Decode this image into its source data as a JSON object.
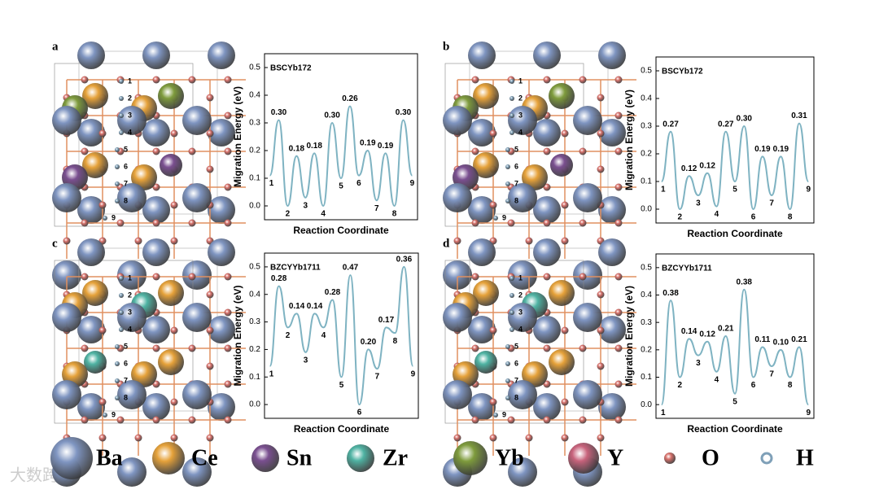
{
  "chart_data": [
    {
      "type": "line",
      "panel": "a",
      "title": "BSCYb172",
      "x_label": "Reaction Coordinate",
      "y_label": "Migration Energy (eV)",
      "color": "#7fb3c2",
      "xlim": [
        -0.6,
        16.6
      ],
      "ylim": [
        -0.05,
        0.55
      ],
      "yticks": [
        {
          "value": 0,
          "label": "0.0"
        },
        0.1,
        0.2,
        0.3,
        0.4,
        0.5
      ],
      "x": [
        0,
        1,
        2,
        3,
        4,
        5,
        6,
        7,
        8,
        9,
        10,
        11,
        12,
        13,
        14,
        15,
        16
      ],
      "values": [
        0.11,
        0.31,
        0.0,
        0.18,
        0.03,
        0.19,
        0.0,
        0.3,
        0.1,
        0.36,
        0.11,
        0.2,
        0.02,
        0.19,
        0.0,
        0.31,
        0.11
      ],
      "point_labels": [
        "1",
        "0.30",
        "2",
        "0.18",
        "3",
        "0.18",
        "4",
        "0.30",
        "5",
        "0.26",
        "6",
        "0.19",
        "7",
        "0.19",
        "8",
        "0.30",
        "9"
      ],
      "structure_labels": [
        "1",
        "2",
        "3",
        "4",
        "5",
        "6",
        "7",
        "8",
        "9"
      ]
    },
    {
      "type": "line",
      "panel": "b",
      "title": "BSCYb172",
      "x_label": "Reaction Coordinate",
      "y_label": "Migration Energy (eV)",
      "color": "#7fb3c2",
      "xlim": [
        -0.6,
        16.6
      ],
      "ylim": [
        -0.05,
        0.55
      ],
      "yticks": [
        {
          "value": 0,
          "label": "0.0"
        },
        0.1,
        0.2,
        0.3,
        0.4,
        0.5
      ],
      "x": [
        0,
        1,
        2,
        3,
        4,
        5,
        6,
        7,
        8,
        9,
        10,
        11,
        12,
        13,
        14,
        15,
        16
      ],
      "values": [
        0.1,
        0.28,
        0.0,
        0.12,
        0.05,
        0.13,
        0.01,
        0.28,
        0.1,
        0.3,
        0.0,
        0.19,
        0.05,
        0.19,
        0.0,
        0.31,
        0.1
      ],
      "point_labels": [
        "1",
        "0.27",
        "2",
        "0.12",
        "3",
        "0.12",
        "4",
        "0.27",
        "5",
        "0.30",
        "6",
        "0.19",
        "7",
        "0.19",
        "8",
        "0.31",
        "9"
      ],
      "structure_labels": [
        "1",
        "2",
        "3",
        "4",
        "5",
        "6",
        "7",
        "8",
        "9"
      ]
    },
    {
      "type": "line",
      "panel": "c",
      "title": "BZCYYb1711",
      "x_label": "Reaction Coordinate",
      "y_label": "Migration Energy (eV)",
      "color": "#7fb3c2",
      "xlim": [
        -0.6,
        16.6
      ],
      "ylim": [
        -0.05,
        0.55
      ],
      "yticks": [
        {
          "value": 0,
          "label": "0.0"
        },
        0.1,
        0.2,
        0.3,
        0.4,
        0.5
      ],
      "x": [
        0,
        1,
        2,
        3,
        4,
        5,
        6,
        7,
        8,
        9,
        10,
        11,
        12,
        13,
        14,
        15,
        16
      ],
      "values": [
        0.14,
        0.43,
        0.28,
        0.33,
        0.19,
        0.33,
        0.28,
        0.38,
        0.1,
        0.47,
        0.0,
        0.2,
        0.13,
        0.28,
        0.26,
        0.5,
        0.14
      ],
      "point_labels": [
        "1",
        "0.28",
        "2",
        "0.14",
        "3",
        "0.14",
        "4",
        "0.28",
        "5",
        "0.47",
        "6",
        "0.20",
        "7",
        "0.17",
        "8",
        "0.36",
        "9"
      ],
      "structure_labels": [
        "1",
        "2",
        "3",
        "4",
        "5",
        "6",
        "7",
        "8",
        "9"
      ]
    },
    {
      "type": "line",
      "panel": "d",
      "title": "BZCYYb1711",
      "x_label": "Reaction Coordinate",
      "y_label": "Migration Energy (eV)",
      "color": "#7fb3c2",
      "xlim": [
        -0.6,
        16.6
      ],
      "ylim": [
        -0.05,
        0.55
      ],
      "yticks": [
        {
          "value": 0,
          "label": "0.0"
        },
        0.1,
        0.2,
        0.3,
        0.4,
        0.5
      ],
      "x": [
        0,
        1,
        2,
        3,
        4,
        5,
        6,
        7,
        8,
        9,
        10,
        11,
        12,
        13,
        14,
        15,
        16
      ],
      "values": [
        0.0,
        0.38,
        0.1,
        0.24,
        0.18,
        0.23,
        0.12,
        0.25,
        0.04,
        0.42,
        0.1,
        0.21,
        0.14,
        0.2,
        0.1,
        0.21,
        0.0
      ],
      "point_labels": [
        "1",
        "0.38",
        "2",
        "0.14",
        "3",
        "0.12",
        "4",
        "0.21",
        "5",
        "0.38",
        "6",
        "0.11",
        "7",
        "0.10",
        "8",
        "0.21",
        "9"
      ],
      "structure_labels": [
        "1",
        "2",
        "3",
        "4",
        "5",
        "6",
        "7",
        "8",
        "9"
      ]
    }
  ],
  "legend": [
    {
      "name": "Ba",
      "color": "#7f95c1"
    },
    {
      "name": "Ce",
      "color": "#e6a23a"
    },
    {
      "name": "Sn",
      "color": "#7a4f90"
    },
    {
      "name": "Zr",
      "color": "#4fb3a3"
    },
    {
      "name": "Yb",
      "color": "#7e9b3c"
    },
    {
      "name": "Y",
      "color": "#c8637c"
    },
    {
      "name": "O",
      "color": "#d9726c"
    },
    {
      "name": "H",
      "color": "#7fa0b8"
    }
  ],
  "watermark": "大数跨境"
}
